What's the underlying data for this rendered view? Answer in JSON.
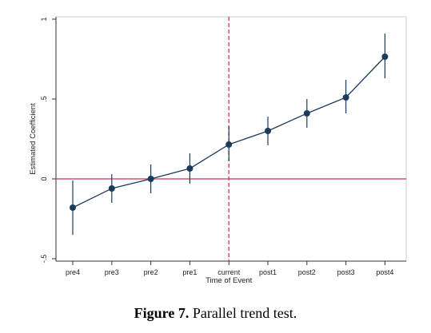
{
  "chart_data": {
    "type": "line",
    "xlabel": "Time of Event",
    "ylabel": "Estimated Coefficient",
    "categories": [
      "pre4",
      "pre3",
      "pre2",
      "pre1",
      "current",
      "post1",
      "post2",
      "post3",
      "post4"
    ],
    "values": [
      -0.18,
      -0.06,
      0.0,
      0.065,
      0.215,
      0.3,
      0.41,
      0.51,
      0.765
    ],
    "ci_low": [
      -0.35,
      -0.15,
      -0.09,
      -0.03,
      0.11,
      0.21,
      0.32,
      0.41,
      0.63
    ],
    "ci_high": [
      -0.01,
      0.03,
      0.09,
      0.16,
      0.33,
      0.39,
      0.5,
      0.62,
      0.91
    ],
    "ylim": [
      -0.5,
      1
    ],
    "yticks": [
      "-.5",
      "0",
      ".5",
      "1"
    ],
    "reference_lines": {
      "horizontal_y": 0,
      "vertical_at": "current"
    },
    "colors": {
      "series": "#1b3a5c",
      "marker": "#1b3a5c",
      "reference": "#c8385a",
      "plot_border": "#cccccc"
    },
    "grid": false
  },
  "caption": {
    "label": "Figure 7.",
    "text": " Parallel trend test."
  }
}
